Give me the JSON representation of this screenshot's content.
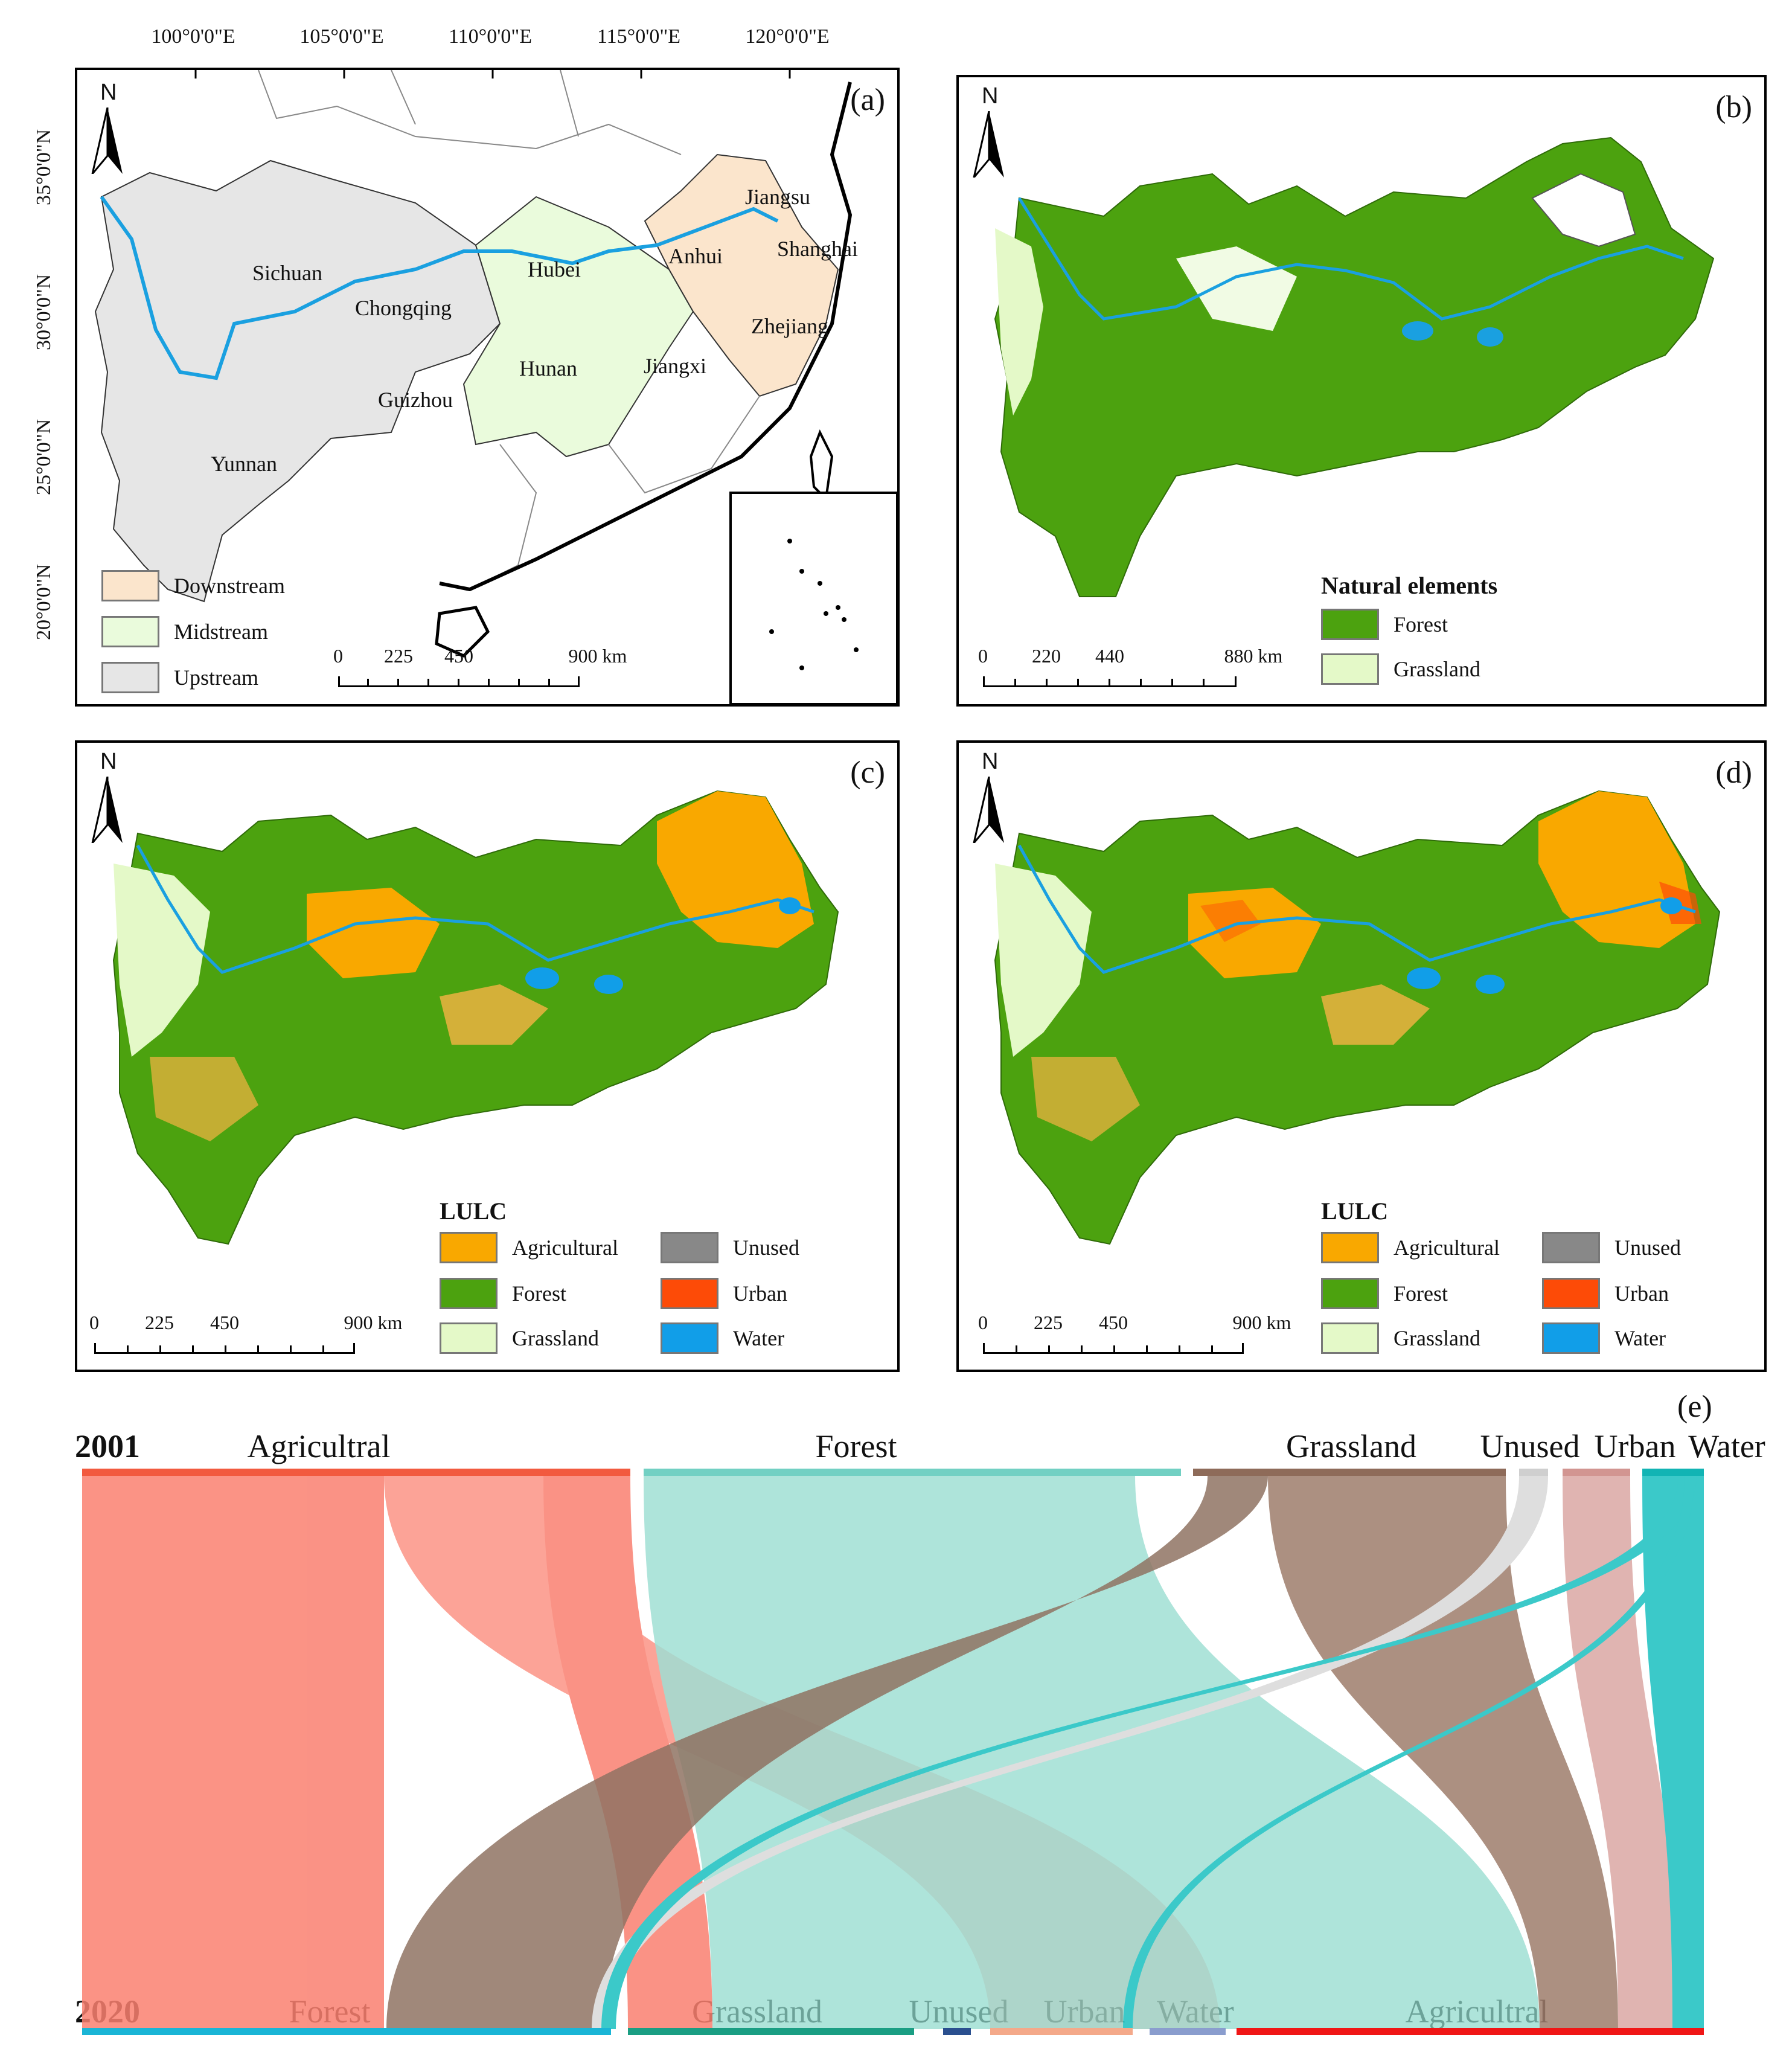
{
  "panel_a": {
    "label": "(a)",
    "north": "N",
    "lon_labels": [
      "100°0'0\"E",
      "105°0'0\"E",
      "110°0'0\"E",
      "115°0'0\"E",
      "120°0'0\"E"
    ],
    "lat_labels": [
      "35°0'0\"N",
      "30°0'0\"N",
      "25°0'0\"N",
      "20°0'0\"N"
    ],
    "provinces": [
      "Sichuan",
      "Chongqing",
      "Hubei",
      "Anhui",
      "Jiangsu",
      "Shanghai",
      "Zhejiang",
      "Hunan",
      "Jiangxi",
      "Guizhou",
      "Yunnan"
    ],
    "legend": [
      {
        "label": "Downstream",
        "color": "#fbe5cc"
      },
      {
        "label": "Midstream",
        "color": "#eafbdc"
      },
      {
        "label": "Upstream",
        "color": "#e6e6e6"
      }
    ],
    "scale": [
      "0",
      "225",
      "450",
      "900 km"
    ]
  },
  "panel_b": {
    "label": "(b)",
    "north": "N",
    "legend_title": "Natural elements",
    "legend": [
      {
        "label": "Forest",
        "color": "#4ca20f"
      },
      {
        "label": "Grassland",
        "color": "#e4f9c8"
      }
    ],
    "scale": [
      "0",
      "220",
      "440",
      "880 km"
    ]
  },
  "panel_c": {
    "label": "(c)",
    "north": "N",
    "legend_title": "LULC",
    "legend": [
      {
        "label": "Agricultural",
        "color": "#f9a800"
      },
      {
        "label": "Unused",
        "color": "#888888"
      },
      {
        "label": "Forest",
        "color": "#4ca20f"
      },
      {
        "label": "Urban",
        "color": "#fd4b07"
      },
      {
        "label": "Grassland",
        "color": "#e4f9c8"
      },
      {
        "label": "Water",
        "color": "#119ee8"
      }
    ],
    "scale": [
      "0",
      "225",
      "450",
      "900 km"
    ]
  },
  "panel_d": {
    "label": "(d)",
    "north": "N",
    "legend_title": "LULC",
    "legend": [
      {
        "label": "Agricultural",
        "color": "#f9a800"
      },
      {
        "label": "Unused",
        "color": "#888888"
      },
      {
        "label": "Forest",
        "color": "#4ca20f"
      },
      {
        "label": "Urban",
        "color": "#fd4b07"
      },
      {
        "label": "Grassland",
        "color": "#e4f9c8"
      },
      {
        "label": "Water",
        "color": "#119ee8"
      }
    ],
    "scale": [
      "0",
      "225",
      "450",
      "900 km"
    ]
  },
  "panel_e": {
    "label": "(e)",
    "year_top": "2001",
    "year_bottom": "2020",
    "top_categories": [
      "Agricultral",
      "Forest",
      "Grassland",
      "Unused",
      "Urban",
      "Water"
    ],
    "bottom_categories": [
      "Forest",
      "Grassland",
      "Unused",
      "Urban",
      "Water",
      "Agricultral"
    ],
    "colors": {
      "Agricultral": "#fa8070",
      "Forest": "#8fd9cc",
      "Grassland": "#9e7d6c",
      "Unused": "#d9d9d9",
      "Urban": "#dba7a4",
      "Water": "#19c0c0"
    },
    "bottom_bar_colors": {
      "Forest": "#1ab5d6",
      "Grassland": "#1a9e83",
      "Unused": "#2a4f8f",
      "Urban": "#f4a98a",
      "Water": "#8a9dce",
      "Agricultral": "#f01616"
    }
  }
}
